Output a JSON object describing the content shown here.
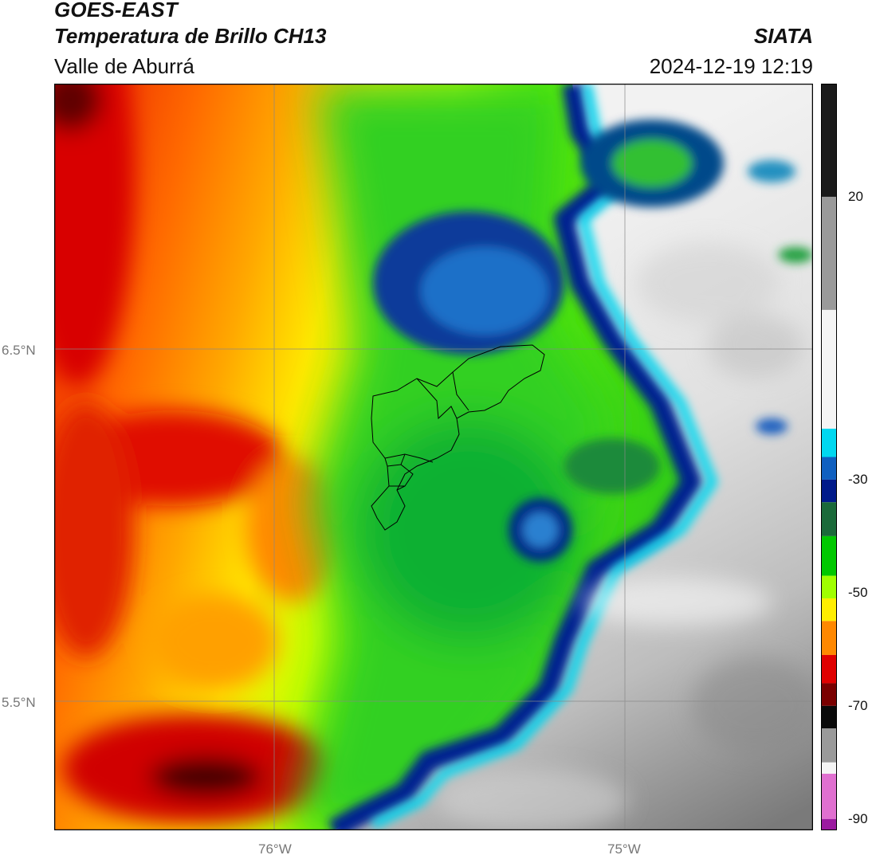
{
  "header": {
    "title": "GOES-EAST",
    "subtitle": "Temperatura de Brillo CH13",
    "region": "Valle de Aburrá",
    "agency": "SIATA",
    "datetime": "2024-12-19 12:19"
  },
  "map": {
    "lat_labels": [
      "6.5°N",
      "5.5°N"
    ],
    "lon_labels": [
      "76°W",
      "75°W"
    ],
    "gridlines": true,
    "gridline_color": "#888888",
    "boundary_color": "#000000"
  },
  "colorbar": {
    "ticks": [
      "20",
      "-30",
      "-50",
      "-70",
      "-90"
    ],
    "tick_values": [
      20,
      -30,
      -50,
      -70,
      -90
    ],
    "range": [
      -92,
      40
    ],
    "colors": {
      "cold_purple": "#9b1aa0",
      "pink": "#e070d0",
      "black": "#0a0a0a",
      "dark_red": "#7a0000",
      "red": "#e00000",
      "orange": "#ff8800",
      "yellow": "#ffee00",
      "lime": "#a0ff00",
      "green": "#00c800",
      "dark_green": "#1a6a3a",
      "navy": "#001a8a",
      "blue": "#1060c0",
      "cyan": "#00d8f0",
      "white": "#f4f4f4",
      "grey": "#9a9a9a",
      "dark_grey": "#1a1a1a"
    }
  }
}
